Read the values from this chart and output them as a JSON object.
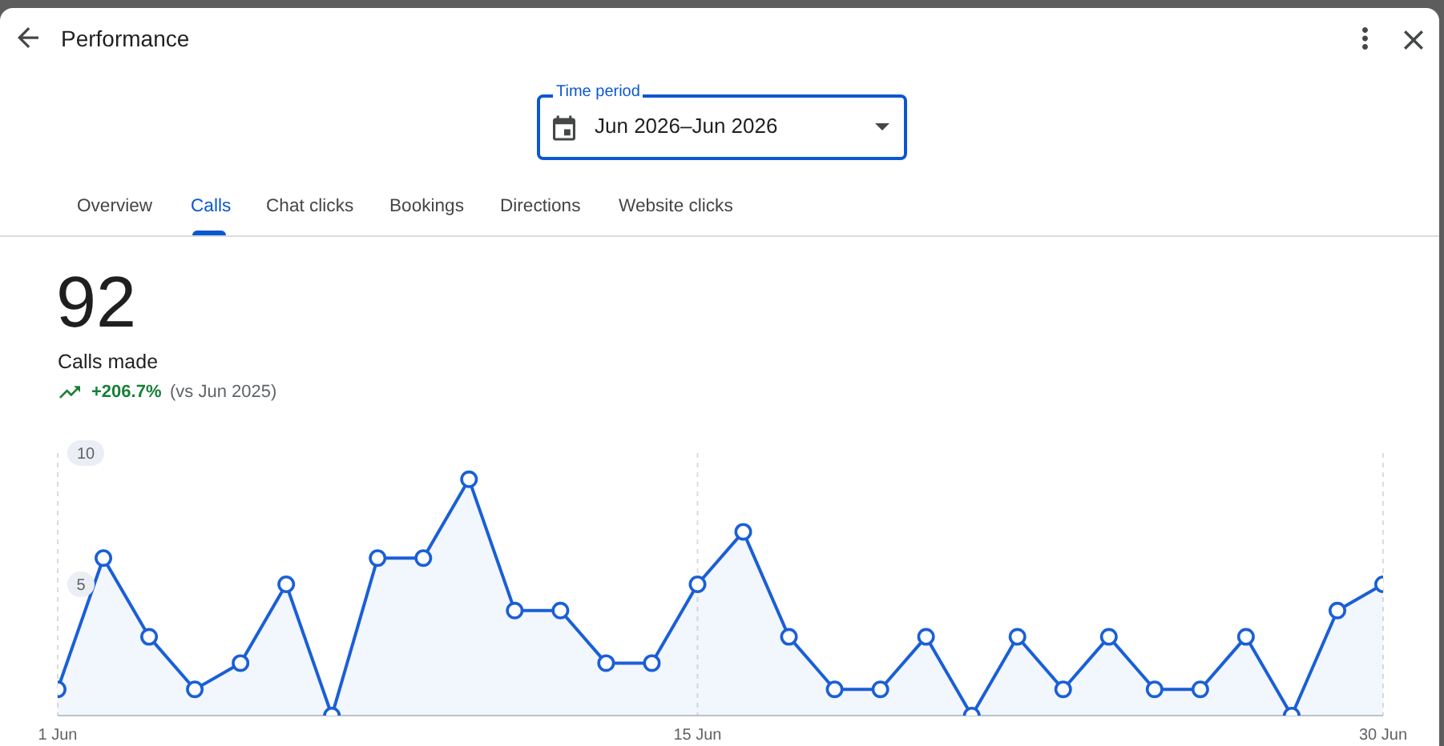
{
  "chart_data": {
    "type": "area",
    "title": "Performance",
    "annotations": [
      "Time period",
      "Jun 2026–Jun 2026",
      "Overview",
      "Calls",
      "Chat clicks",
      "Bookings",
      "Directions",
      "Website clicks",
      "92",
      "Calls made",
      "+206.7%",
      "(vs Jun 2025)"
    ],
    "x": [
      "2026-06-01",
      "2026-06-02",
      "2026-06-03",
      "2026-06-04",
      "2026-06-05",
      "2026-06-06",
      "2026-06-07",
      "2026-06-08",
      "2026-06-09",
      "2026-06-10",
      "2026-06-11",
      "2026-06-12",
      "2026-06-13",
      "2026-06-14",
      "2026-06-15",
      "2026-06-16",
      "2026-06-17",
      "2026-06-18",
      "2026-06-19",
      "2026-06-20",
      "2026-06-21",
      "2026-06-22",
      "2026-06-23",
      "2026-06-24",
      "2026-06-25",
      "2026-06-26",
      "2026-06-27",
      "2026-06-28",
      "2026-06-29",
      "2026-06-30"
    ],
    "values": [
      1,
      6,
      3,
      1,
      2,
      5,
      0,
      6,
      6,
      9,
      4,
      4,
      2,
      2,
      5,
      7,
      3,
      1,
      1,
      3,
      0,
      3,
      1,
      3,
      1,
      1,
      3,
      0,
      4,
      5
    ],
    "color": "#1a5fd6",
    "xlim": [
      "2026-06-01",
      "2026-06-30"
    ],
    "xticks": [
      {
        "value": "2026-06-01",
        "label": "1 Jun"
      },
      {
        "value": "2026-06-15",
        "label": "15 Jun"
      },
      {
        "value": "2026-06-30",
        "label": "30 Jun"
      }
    ],
    "ylim": [
      0,
      10
    ],
    "yticks": [
      5,
      10
    ],
    "grid": "x",
    "marker": "circle",
    "line_style": "solid"
  }
}
